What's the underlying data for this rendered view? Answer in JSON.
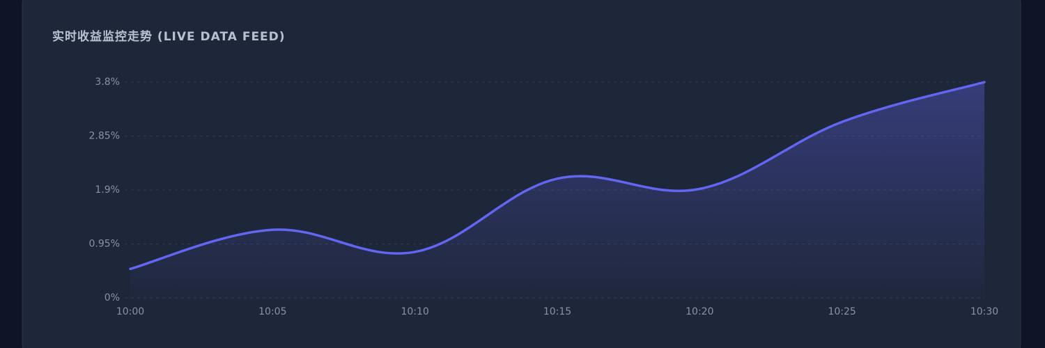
{
  "chart_data": {
    "type": "line",
    "title": "实时收益监控走势 (LIVE DATA FEED)",
    "categories": [
      "10:00",
      "10:05",
      "10:10",
      "10:15",
      "10:20",
      "10:25",
      "10:30"
    ],
    "values": [
      0.51,
      1.2,
      0.81,
      2.1,
      1.92,
      3.1,
      3.8
    ],
    "color": "#6366f1",
    "ylim": [
      0,
      3.8
    ],
    "yticks": [
      {
        "value": 0,
        "label": "0%"
      },
      {
        "value": 0.95,
        "label": "0.95%"
      },
      {
        "value": 1.9,
        "label": "1.9%"
      },
      {
        "value": 2.85,
        "label": "2.85%"
      },
      {
        "value": 3.8,
        "label": "3.8%"
      }
    ],
    "grid": true
  }
}
